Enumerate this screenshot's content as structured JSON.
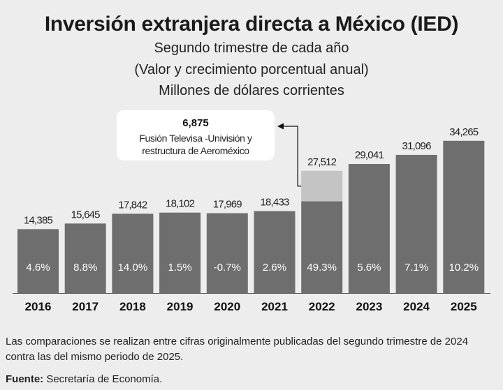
{
  "header": {
    "title": "Inversión extranjera directa a México (IED)",
    "subtitle_1": "Segundo trimestre de cada año",
    "subtitle_2": "(Valor y crecimiento porcentual anual)",
    "subtitle_3": "Millones de dólares corrientes"
  },
  "chart_data": {
    "type": "bar",
    "title": "Inversión extranjera directa a México (IED)",
    "categories": [
      "2016",
      "2017",
      "2018",
      "2019",
      "2020",
      "2021",
      "2022",
      "2023",
      "2024",
      "2025"
    ],
    "values": [
      14385,
      15645,
      17842,
      18102,
      17969,
      18433,
      27512,
      29041,
      31096,
      34265
    ],
    "value_labels": [
      "14,385",
      "15,645",
      "17,842",
      "18,102",
      "17,969",
      "18,433",
      "27,512",
      "29,041",
      "31,096",
      "34,265"
    ],
    "growth_labels": [
      "4.6%",
      "8.8%",
      "14.0%",
      "1.5%",
      "-0.7%",
      "2.6%",
      "49.3%",
      "5.6%",
      "7.1%",
      "10.2%"
    ],
    "highlight": {
      "category": "2022",
      "value": 6875,
      "value_label": "6,875",
      "text_1": "Fusión Televisa -Univisión y",
      "text_2": "restructura de Aeroméxico"
    },
    "ylim": [
      0,
      38000
    ],
    "xlabel": "",
    "ylabel": "",
    "colors": {
      "bar": "#6e6e6e",
      "highlight": "#c4c4c4",
      "growth_text": "#ffffff",
      "background": "#ededed"
    }
  },
  "footer": {
    "note": "Las comparaciones se realizan entre cifras originalmente publicadas del segundo trimestre de 2024 contra las del mismo periodo de 2025.",
    "source_label": "Fuente:",
    "source_text": " Secretaría de Economía."
  }
}
